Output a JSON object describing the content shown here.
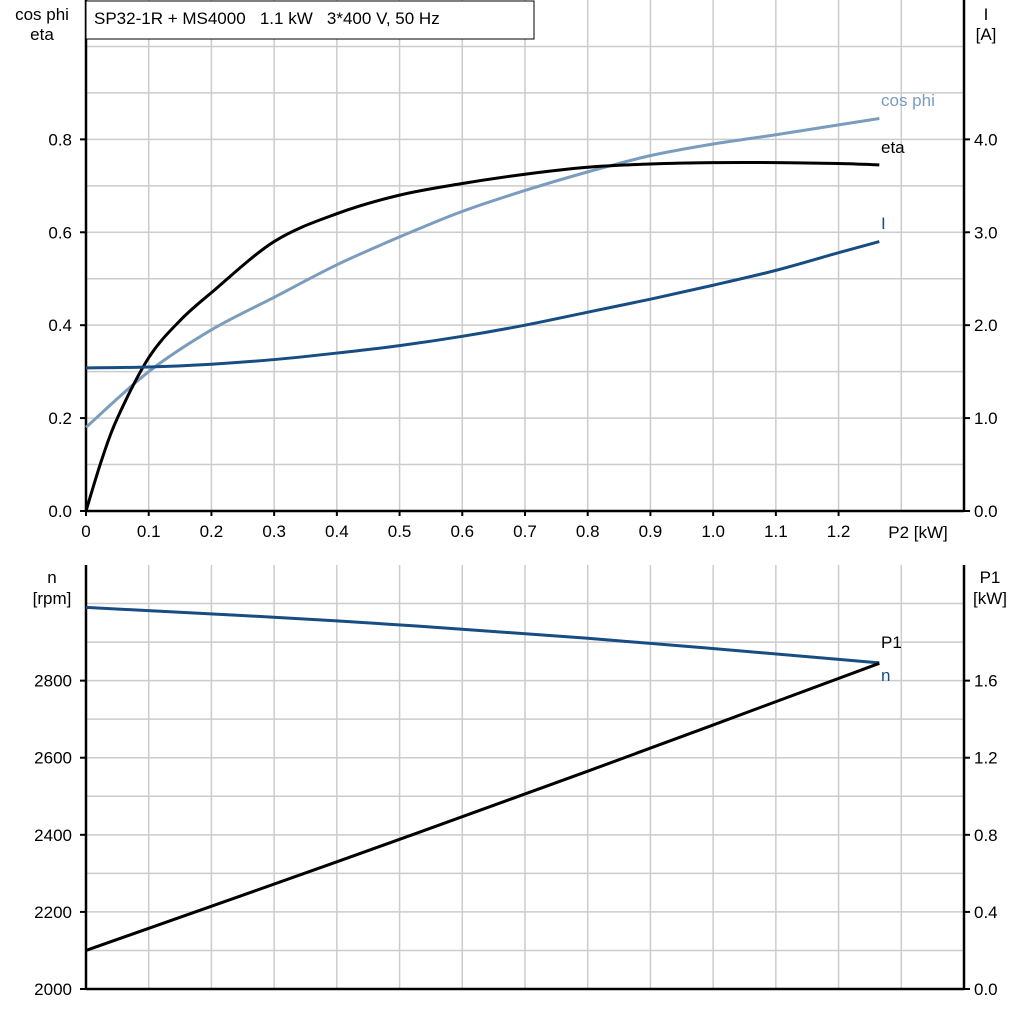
{
  "chart_data": [
    {
      "type": "line",
      "title": "SP32-1R + MS4000   1.1 kW   3*400 V, 50 Hz",
      "xlabel": "P2 [kW]",
      "ylabel_left": [
        "cos phi",
        "eta"
      ],
      "ylabel_right": [
        "I",
        "[A]"
      ],
      "xlim": [
        0,
        1.4
      ],
      "ylim_left": [
        0,
        1.1
      ],
      "ylim_right": [
        0,
        5.5
      ],
      "xticks": [
        0,
        0.1,
        0.2,
        0.3,
        0.4,
        0.5,
        0.6,
        0.7,
        0.8,
        0.9,
        1.0,
        1.1,
        1.2
      ],
      "xtick_labels": [
        "0",
        "0.1",
        "0.2",
        "0.3",
        "0.4",
        "0.5",
        "0.6",
        "0.7",
        "0.8",
        "0.9",
        "1.0",
        "1.1",
        "1.2"
      ],
      "yticks_left": [
        0,
        0.2,
        0.4,
        0.6,
        0.8
      ],
      "ytick_labels_left": [
        "0.0",
        "0.2",
        "0.4",
        "0.6",
        "0.8"
      ],
      "yticks_right": [
        0,
        1,
        2,
        3,
        4
      ],
      "ytick_labels_right": [
        "0.0",
        "1.0",
        "2.0",
        "3.0",
        "4.0"
      ],
      "grid": true,
      "series": [
        {
          "name": "cos phi",
          "axis": "left",
          "color": "#7a9cbd",
          "x": [
            0,
            0.1,
            0.2,
            0.3,
            0.4,
            0.5,
            0.6,
            0.7,
            0.8,
            0.9,
            1.0,
            1.1,
            1.265
          ],
          "y": [
            0.18,
            0.3,
            0.39,
            0.46,
            0.53,
            0.59,
            0.645,
            0.69,
            0.73,
            0.765,
            0.79,
            0.81,
            0.845
          ]
        },
        {
          "name": "eta",
          "axis": "left",
          "color": "#000000",
          "x": [
            0,
            0.025,
            0.05,
            0.1,
            0.15,
            0.2,
            0.3,
            0.4,
            0.5,
            0.6,
            0.7,
            0.8,
            0.9,
            1.0,
            1.1,
            1.2,
            1.265
          ],
          "y": [
            0,
            0.11,
            0.2,
            0.33,
            0.41,
            0.47,
            0.58,
            0.64,
            0.68,
            0.705,
            0.725,
            0.74,
            0.747,
            0.75,
            0.75,
            0.748,
            0.745
          ]
        },
        {
          "name": "I",
          "axis": "right",
          "color": "#174d82",
          "x": [
            0,
            0.1,
            0.2,
            0.3,
            0.4,
            0.5,
            0.6,
            0.7,
            0.8,
            0.9,
            1.0,
            1.1,
            1.2,
            1.265
          ],
          "y": [
            1.54,
            1.55,
            1.58,
            1.63,
            1.7,
            1.78,
            1.88,
            2.0,
            2.14,
            2.28,
            2.43,
            2.59,
            2.78,
            2.9
          ]
        }
      ]
    },
    {
      "type": "line",
      "ylabel_left": [
        "n",
        "[rpm]"
      ],
      "ylabel_right": [
        "P1",
        "[kW]"
      ],
      "xlim": [
        0,
        1.4
      ],
      "ylim_left": [
        2000,
        3100
      ],
      "ylim_right": [
        0,
        2.2
      ],
      "yticks_left": [
        2000,
        2200,
        2400,
        2600,
        2800
      ],
      "ytick_labels_left": [
        "2000",
        "2200",
        "2400",
        "2600",
        "2800"
      ],
      "yticks_right": [
        0,
        0.4,
        0.8,
        1.2,
        1.6
      ],
      "ytick_labels_right": [
        "0.0",
        "0.4",
        "0.8",
        "1.2",
        "1.6"
      ],
      "grid": true,
      "series": [
        {
          "name": "n",
          "axis": "left",
          "color": "#174d82",
          "x": [
            0,
            0.4,
            0.8,
            1.265
          ],
          "y": [
            2990,
            2955,
            2910,
            2846
          ]
        },
        {
          "name": "P1",
          "axis": "right",
          "color": "#000000",
          "x": [
            0,
            0.4,
            0.8,
            1.265
          ],
          "y": [
            0.2,
            0.66,
            1.13,
            1.69
          ]
        }
      ]
    }
  ]
}
